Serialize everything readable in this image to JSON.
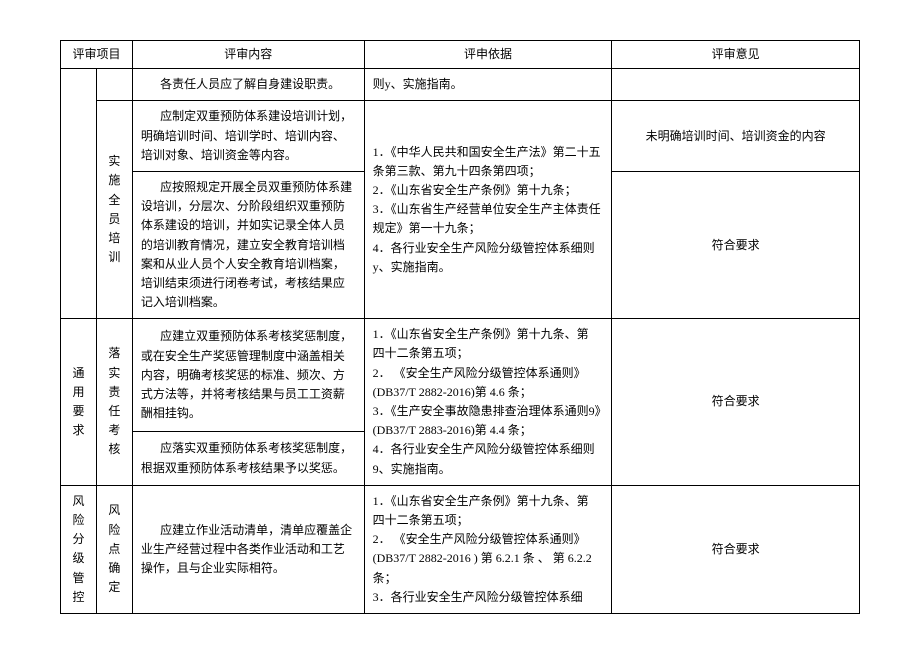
{
  "headers": {
    "h1": "评审项目",
    "h2": "评审内容",
    "h3": "评申依据",
    "h4": "评审意见"
  },
  "rows": {
    "r1": {
      "content": "各责任人员应了解自身建设职责。",
      "basis": "则y、实施指南。"
    },
    "r2": {
      "cat2_a": "实施",
      "cat2_b": "全员",
      "cat2_c": "培训",
      "content": "应制定双重预防体系建设培训计划，明确培训时间、培训学时、培训内容、培训对象、培训资金等内容。",
      "opinion": "未明确培训时间、培训资金的内容"
    },
    "r3": {
      "content": "应按照规定开展全员双重预防体系建设培训，分层次、分阶段组织双重预防体系建设的培训，并如实记录全体人员的培训教育情况，建立安全教育培训档案和从业人员个人安全教育培训档案，培训结束须进行闭卷考试，考核结果应记入培训档案。",
      "basis": "1．《中华人民共和国安全生产法》第二十五条第三款、第九十四条第四项；\n2．《山东省安全生产条例》第十九条；\n3．《山东省生产经营单位安全生产主体责任规定》第一十九条；\n4．各行业安全生产风险分级管控体系细则y、实施指南。",
      "opinion": "符合要求"
    },
    "r4": {
      "cat1_a": "通用",
      "cat1_b": "要求",
      "cat2_a": "落实",
      "cat2_b": "责任",
      "cat2_c": "考核",
      "content": "应建立双重预防体系考核奖惩制度，或在安全生产奖惩管理制度中涵盖相关内容，明确考核奖惩的标准、频次、方式方法等，并将考核结果与员工工资薪酬相挂钩。",
      "basis": "1．《山东省安全生产条例》第十九条、第 四十二条第五项；\n2． 《安全生产风险分级管控体系通则》(DB37/T 2882-2016)第 4.6 条；\n3．《生产安全事故隐患排查治理体系通则9》(DB37/T 2883-2016)第 4.4 条；\n4．各行业安全生产风险分级管控体系细则9、实施指南。",
      "opinion": "符合要求"
    },
    "r5": {
      "content": "应落实双重预防体系考核奖惩制度，根据双重预防体系考核结果予以奖惩。"
    },
    "r6": {
      "cat1_a": "风险",
      "cat1_b": "分级",
      "cat1_c": "管控",
      "cat2_a": "风险",
      "cat2_b": "点确",
      "cat2_c": "定",
      "content": "应建立作业活动清单，清单应覆盖企业生产经营过程中各类作业活动和工艺操作，且与企业实际相符。",
      "basis": "1．《山东省安全生产条例》第十九条、第 四十二条第五项；\n2． 《安全生产风险分级管控体系通则》   (DB37/T 2882-2016 ) 第 6.2.1 条 、 第 6.2.2 条；\n3．各行业安全生产风险分级管控体系细",
      "opinion": "符合要求"
    }
  }
}
